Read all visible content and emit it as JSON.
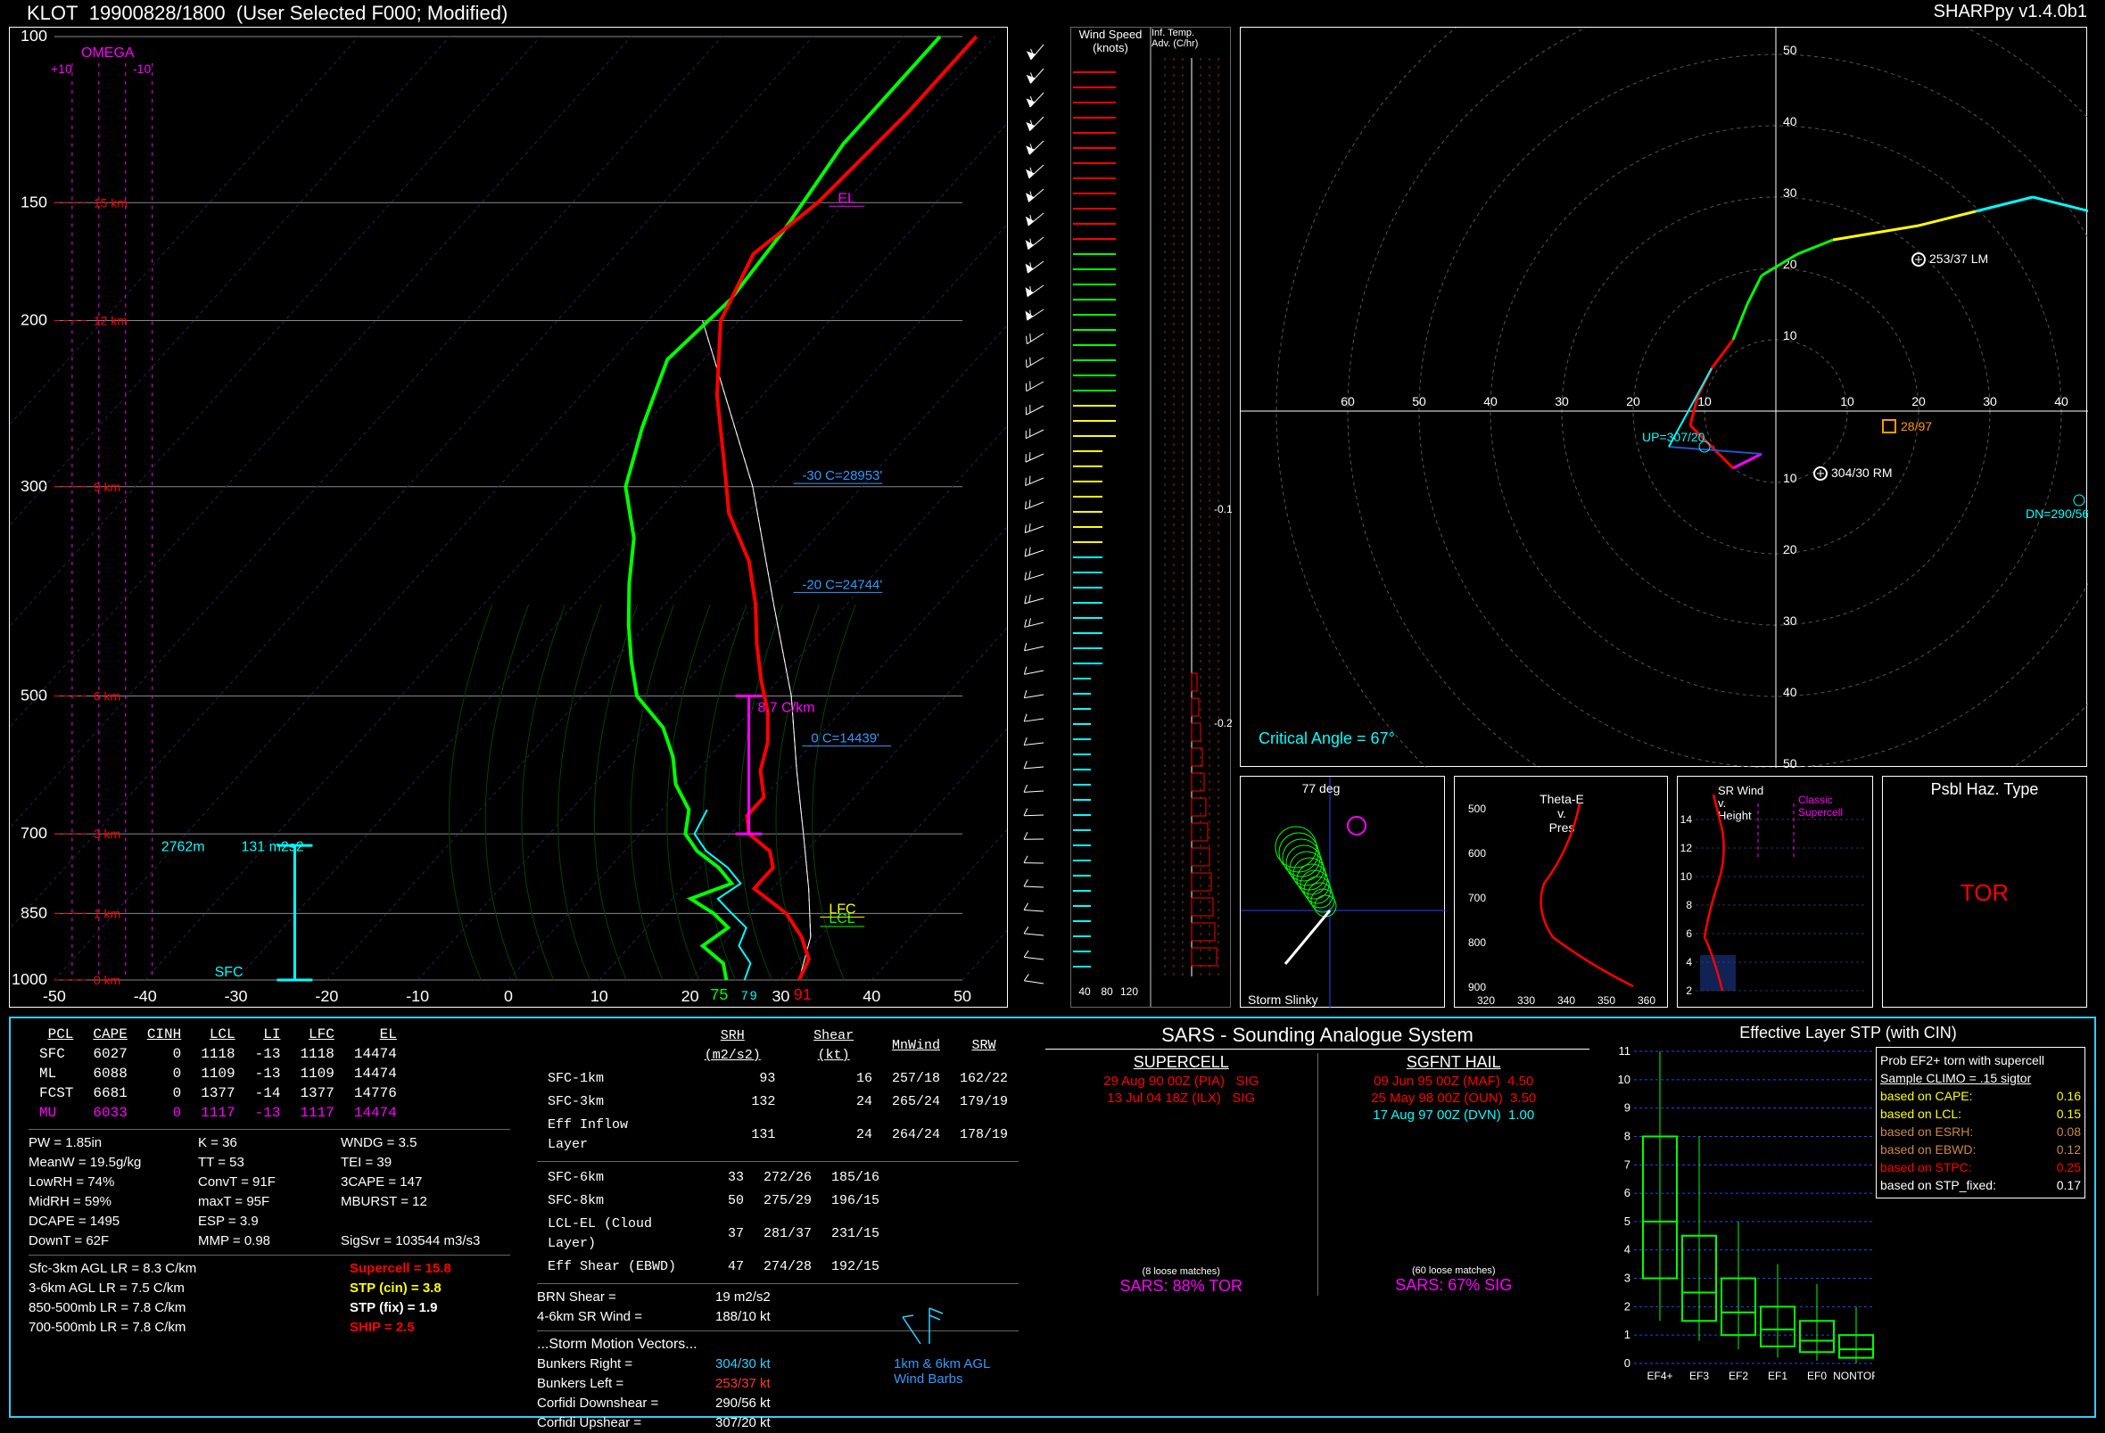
{
  "header": {
    "station": "KLOT",
    "datetime": "19900828/1800",
    "subtitle": "(User Selected F000; Modified)",
    "version": "SHARPpy v1.4.0b1"
  },
  "skewt": {
    "pressure_ticks": [
      100,
      150,
      200,
      300,
      500,
      700,
      850,
      1000
    ],
    "temp_ticks": [
      -50,
      -40,
      -30,
      -20,
      -10,
      0,
      10,
      20,
      30,
      40,
      50
    ],
    "height_labels": [
      {
        "p": 1000,
        "km": "0 km",
        "color": "#ff0000"
      },
      {
        "p": 850,
        "km": "1 km",
        "color": "#ff0000"
      },
      {
        "p": 700,
        "km": "3 km",
        "color": "#ff0000"
      },
      {
        "p": 500,
        "km": "6 km",
        "color": "#ff0000"
      },
      {
        "p": 300,
        "km": "9 km",
        "color": "#ff0000"
      },
      {
        "p": 200,
        "km": "12 km",
        "color": "#ff0000"
      },
      {
        "p": 150,
        "km": "15 km",
        "color": "#ff0000"
      }
    ],
    "labels": {
      "omega": "OMEGA",
      "omega_lo": "+10",
      "omega_hi": "-10",
      "sfc": "SFC",
      "sfc_color": "#00ffff",
      "lcl": "LCL",
      "lfc": "LFC",
      "el": "EL",
      "lcl_color": "#00ff00",
      "lfc_color": "#ffff00",
      "el_color": "#ff00ff",
      "lapse_text": "8.7 C/km",
      "lapse_color": "#ff00ff",
      "thirty_label": "-30 C=28953'",
      "twenty_label": "-20 C=24744'",
      "zero_label": "0 C=14439'",
      "blue_label_color": "#3399ff",
      "eff_inflow_top": "2762m",
      "eff_inflow_srh": "131 m2s2",
      "eff_inflow_color": "#00ffff",
      "sfc_T": "91",
      "sfc_Td": "75",
      "sfc_Tw": "79"
    },
    "temp_curve_color": "#ff0000",
    "dwpt_curve_color": "#00ff00",
    "wetbulb_color": "#00ffff",
    "parcel_color": "#ffffff",
    "temp_curve": [
      [
        32,
        1000
      ],
      [
        31,
        950
      ],
      [
        28,
        900
      ],
      [
        24,
        850
      ],
      [
        18,
        800
      ],
      [
        18,
        760
      ],
      [
        16,
        730
      ],
      [
        12,
        700
      ],
      [
        10,
        670
      ],
      [
        10,
        640
      ],
      [
        7,
        600
      ],
      [
        5,
        560
      ],
      [
        2,
        520
      ],
      [
        -2,
        480
      ],
      [
        -6,
        440
      ],
      [
        -10,
        400
      ],
      [
        -15,
        360
      ],
      [
        -22,
        320
      ],
      [
        -28,
        280
      ],
      [
        -35,
        240
      ],
      [
        -42,
        200
      ],
      [
        -45,
        170
      ],
      [
        -43,
        150
      ],
      [
        -42,
        120
      ],
      [
        -42,
        100
      ]
    ],
    "dwpt_curve": [
      [
        24,
        1000
      ],
      [
        22,
        960
      ],
      [
        18,
        920
      ],
      [
        19,
        880
      ],
      [
        16,
        850
      ],
      [
        12,
        820
      ],
      [
        15,
        790
      ],
      [
        12,
        760
      ],
      [
        8,
        730
      ],
      [
        5,
        700
      ],
      [
        3,
        660
      ],
      [
        -1,
        620
      ],
      [
        -4,
        580
      ],
      [
        -8,
        540
      ],
      [
        -14,
        500
      ],
      [
        -18,
        460
      ],
      [
        -22,
        420
      ],
      [
        -26,
        380
      ],
      [
        -30,
        340
      ],
      [
        -36,
        300
      ],
      [
        -40,
        260
      ],
      [
        -44,
        220
      ],
      [
        -43,
        190
      ],
      [
        -44,
        160
      ],
      [
        -46,
        130
      ],
      [
        -46,
        100
      ]
    ],
    "wetbulb_curve": [
      [
        26,
        1000
      ],
      [
        25,
        960
      ],
      [
        22,
        920
      ],
      [
        21,
        880
      ],
      [
        18,
        850
      ],
      [
        15,
        820
      ],
      [
        16,
        790
      ],
      [
        13,
        760
      ],
      [
        9,
        730
      ],
      [
        6,
        700
      ],
      [
        5,
        660
      ]
    ],
    "parcel_curve": [
      [
        32,
        1000
      ],
      [
        29,
        900
      ],
      [
        24,
        800
      ],
      [
        18,
        700
      ],
      [
        11,
        600
      ],
      [
        3,
        500
      ],
      [
        -8,
        400
      ],
      [
        -22,
        300
      ],
      [
        -44,
        200
      ]
    ],
    "adiabat_color": "#004400",
    "isotherm_color": "#222255",
    "wind_speed_ticks": [
      40,
      80,
      120
    ]
  },
  "wind_speed_panel": {
    "title1": "Wind Speed",
    "title2": "(knots)",
    "tick_color": "#00ffff"
  },
  "inf_temp_panel": {
    "title1": "Inf. Temp.",
    "title2": "Adv. (C/hr)",
    "zero_ticks": [
      -0.1,
      -0.2
    ],
    "line_color": "#ff0000",
    "zero_color": "#883300"
  },
  "hodo": {
    "ring_step": 10,
    "ring_max": 70,
    "ring_color": "#555555",
    "axis_color": "#ffffff",
    "axis_ticks": [
      10,
      20,
      30,
      40,
      50,
      60
    ],
    "crit_angle_label": "Critical Angle = 67°",
    "crit_angle_color": "#00ffff",
    "rm_label": "304/30 RM",
    "lm_label": "253/37 LM",
    "up_label": "UP=307/20",
    "dn_label": "DN=290/56",
    "bunkers_label": "28/97",
    "seg_colors": {
      "0_3": "#ff0000",
      "3_6": "#00ff00",
      "6_9": "#ffff00",
      "9_12": "#00ffff",
      "PBL": "#ff00ff"
    },
    "points": [
      [
        -2,
        -6
      ],
      [
        -6,
        -8
      ],
      [
        -8,
        -6
      ],
      [
        -10,
        -4
      ],
      [
        -12,
        -2
      ],
      [
        -11,
        2
      ],
      [
        -9,
        6
      ],
      [
        -6,
        10
      ],
      [
        -4,
        15
      ],
      [
        -2,
        19
      ],
      [
        3,
        22
      ],
      [
        8,
        24
      ],
      [
        14,
        25
      ],
      [
        20,
        26
      ],
      [
        28,
        28
      ],
      [
        36,
        30
      ],
      [
        44,
        28
      ],
      [
        50,
        24
      ],
      [
        54,
        18
      ]
    ]
  },
  "slinky": {
    "label": "Storm Slinky",
    "angle": "77 deg",
    "ring_color": "#00ff00",
    "axis_color": "#2244ff",
    "end_color": "#ff00ff",
    "vector_color": "#ffffff"
  },
  "thetae": {
    "title1": "Theta-E",
    "title2": "v.",
    "title3": "Pres",
    "xticks": [
      320,
      330,
      340,
      350,
      360
    ],
    "yticks": [
      500,
      600,
      700,
      800,
      900
    ],
    "line_color": "#ff0000"
  },
  "srwind": {
    "title1": "SR Wind",
    "title2": "v.",
    "title3": "Height",
    "sup_label": "Classic Supercell",
    "sup_color": "#ff00ff",
    "yticks": [
      2,
      4,
      6,
      8,
      10,
      12,
      14
    ],
    "line_color": "#ff0000",
    "band_color": "#3344ff"
  },
  "haz": {
    "title": "Psbl Haz. Type",
    "value": "TOR",
    "value_color": "#ff0000"
  },
  "parcels": {
    "headers": [
      "PCL",
      "CAPE",
      "CINH",
      "LCL",
      "LI",
      "LFC",
      "EL"
    ],
    "rows": [
      {
        "name": "SFC",
        "cape": 6027,
        "cinh": 0,
        "lcl": 1118,
        "li": -13,
        "lfc": 1118,
        "el": 14474,
        "cls": ""
      },
      {
        "name": "ML",
        "cape": 6088,
        "cinh": 0,
        "lcl": 1109,
        "li": -13,
        "lfc": 1109,
        "el": 14474,
        "cls": ""
      },
      {
        "name": "FCST",
        "cape": 6681,
        "cinh": 0,
        "lcl": 1377,
        "li": -14,
        "lfc": 1377,
        "el": 14776,
        "cls": ""
      },
      {
        "name": "MU",
        "cape": 6033,
        "cinh": 0,
        "lcl": 1117,
        "li": -13,
        "lfc": 1117,
        "el": 14474,
        "cls": "mu"
      }
    ]
  },
  "thermo": [
    {
      "l": "PW = 1.85in",
      "c2": "K = 36",
      "c3": "WNDG = 3.5"
    },
    {
      "l": "MeanW = 19.5g/kg",
      "c2": "TT = 53",
      "c3": "TEI = 39"
    },
    {
      "l": "LowRH = 74%",
      "c2": "ConvT = 91F",
      "c3": "3CAPE = 147"
    },
    {
      "l": "MidRH = 59%",
      "c2": "maxT = 95F",
      "c3": "MBURST = 12"
    },
    {
      "l": "DCAPE = 1495",
      "c2": "ESP = 3.9",
      "c3": ""
    },
    {
      "l": "DownT = 62F",
      "c2": "MMP = 0.98",
      "c3": "SigSvr = 103544 m3/s3"
    }
  ],
  "lapse": [
    "Sfc-3km AGL LR = 8.3 C/km",
    "3-6km AGL LR = 7.5 C/km",
    "850-500mb LR = 7.8 C/km",
    "700-500mb LR = 7.8 C/km"
  ],
  "composite": [
    {
      "label": "Supercell = 15.8",
      "color": "#ff0000"
    },
    {
      "label": "STP (cin) = 3.8",
      "color": "#ffff00"
    },
    {
      "label": "STP (fix) = 1.9",
      "color": "#ffffff"
    },
    {
      "label": "SHIP = 2.5",
      "color": "#ff0000"
    }
  ],
  "kinematics": {
    "headers": [
      "",
      "SRH (m2/s2)",
      "Shear (kt)",
      "MnWind",
      "SRW"
    ],
    "rows": [
      {
        "name": "SFC-1km",
        "srh": 93,
        "shear": 16,
        "mn": "257/18",
        "srw": "162/22"
      },
      {
        "name": "SFC-3km",
        "srh": 132,
        "shear": 24,
        "mn": "265/24",
        "srw": "179/19"
      },
      {
        "name": "Eff Inflow Layer",
        "srh": 131,
        "shear": 24,
        "mn": "264/24",
        "srw": "178/19"
      }
    ],
    "rows2": [
      {
        "name": "SFC-6km",
        "srh": 33,
        "shear": "272/26",
        "mn": "",
        "srw": "185/16"
      },
      {
        "name": "SFC-8km",
        "srh": 50,
        "shear": "275/29",
        "mn": "",
        "srw": "196/15"
      },
      {
        "name": "LCL-EL (Cloud Layer)",
        "srh": 37,
        "shear": "281/37",
        "mn": "",
        "srw": "231/15"
      },
      {
        "name": "Eff Shear (EBWD)",
        "srh": 47,
        "shear": "274/28",
        "mn": "",
        "srw": "192/15"
      }
    ],
    "extra": [
      {
        "l": "BRN Shear =",
        "v": "19 m2/s2"
      },
      {
        "l": "4-6km SR Wind =",
        "v": "188/10 kt"
      }
    ],
    "motion_title": "...Storm Motion Vectors...",
    "motion": [
      {
        "l": "Bunkers Right =",
        "v": "304/30 kt",
        "color": "#33ccff"
      },
      {
        "l": "Bunkers Left =",
        "v": "253/37 kt",
        "color": "#ff3333"
      },
      {
        "l": "Corfidi Downshear =",
        "v": "290/56 kt",
        "color": "#ffffff"
      },
      {
        "l": "Corfidi Upshear =",
        "v": "307/20 kt",
        "color": "#ffffff"
      }
    ],
    "barb_label1": "1km & 6km AGL",
    "barb_label2": "Wind Barbs",
    "barb_color": "#33ccff"
  },
  "sars": {
    "title": "SARS - Sounding Analogue System",
    "supercell": {
      "heading": "SUPERCELL",
      "matches": [
        {
          "text": "29 Aug 90 00Z (PIA)",
          "qual": "SIG",
          "color": "#ff0000"
        },
        {
          "text": "13 Jul 04 18Z (ILX)",
          "qual": "SIG",
          "color": "#ff0000"
        }
      ],
      "loose": "(8 loose matches)",
      "summary": "SARS: 88% TOR",
      "summary_color": "#ff00ff"
    },
    "hail": {
      "heading": "SGFNT HAIL",
      "matches": [
        {
          "text": "09 Jun 95 00Z (MAF)",
          "qual": "4.50",
          "color": "#ff0000"
        },
        {
          "text": "25 May 98 00Z (OUN)",
          "qual": "3.50",
          "color": "#ff0000"
        },
        {
          "text": "17 Aug 97 00Z (DVN)",
          "qual": "1.00",
          "color": "#00ffff"
        }
      ],
      "loose": "(60 loose matches)",
      "summary": "SARS: 67% SIG",
      "summary_color": "#ff00ff"
    }
  },
  "stp": {
    "title": "Effective Layer STP (with CIN)",
    "yticks": [
      0,
      1,
      2,
      3,
      4,
      5,
      6,
      7,
      8,
      9,
      10,
      11
    ],
    "cats": [
      "EF4+",
      "EF3",
      "EF2",
      "EF1",
      "EF0",
      "NONTOR"
    ],
    "boxes": [
      {
        "lo": 1.5,
        "q1": 3.0,
        "med": 5.0,
        "q3": 8.0,
        "hi": 11.0
      },
      {
        "lo": 0.8,
        "q1": 1.5,
        "med": 2.5,
        "q3": 4.5,
        "hi": 8.0
      },
      {
        "lo": 0.5,
        "q1": 1.0,
        "med": 1.8,
        "q3": 3.0,
        "hi": 5.0
      },
      {
        "lo": 0.2,
        "q1": 0.6,
        "med": 1.2,
        "q3": 2.0,
        "hi": 3.5
      },
      {
        "lo": 0.1,
        "q1": 0.4,
        "med": 0.8,
        "q3": 1.5,
        "hi": 2.8
      },
      {
        "lo": 0.0,
        "q1": 0.2,
        "med": 0.5,
        "q3": 1.0,
        "hi": 2.0
      }
    ],
    "box_color": "#00ff00",
    "grid_color": "#2244ff",
    "side": {
      "line1": "Prob EF2+ torn with supercell",
      "line2": "Sample CLIMO = .15 sigtor",
      "rows": [
        {
          "l": "based on CAPE:",
          "v": "0.16",
          "color": "#ffff00"
        },
        {
          "l": "based on LCL:",
          "v": "0.15",
          "color": "#ffff00"
        },
        {
          "l": "based on ESRH:",
          "v": "0.08",
          "color": "#cc8844"
        },
        {
          "l": "based on EBWD:",
          "v": "0.12",
          "color": "#cc8844"
        },
        {
          "l": "based on STPC:",
          "v": "0.25",
          "color": "#ff0000"
        },
        {
          "l": "based on STP_fixed:",
          "v": "0.17",
          "color": "#ffffff"
        }
      ]
    }
  }
}
